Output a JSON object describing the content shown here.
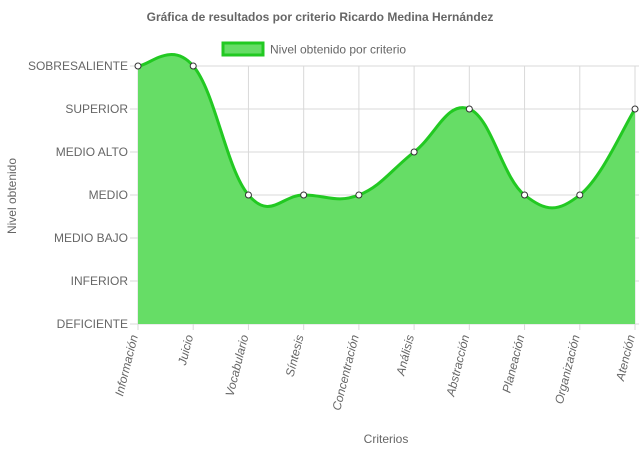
{
  "chart_data": {
    "type": "area",
    "title": "Gráfica de resultados por criterio Ricardo Medina Hernández",
    "xlabel": "Criterios",
    "ylabel": "Nivel obtenido",
    "legend": {
      "position": "top",
      "label": "Nivel obtenido por criterio"
    },
    "levels": [
      "DEFICIENTE",
      "INFERIOR",
      "MEDIO BAJO",
      "MEDIO",
      "MEDIO ALTO",
      "SUPERIOR",
      "SOBRESALIENTE"
    ],
    "categories": [
      "Información",
      "Juicio",
      "Vocabulario",
      "Síntesis",
      "Concentración",
      "Análisis",
      "Abstracción",
      "Planeación",
      "Organización",
      "Atención"
    ],
    "series": [
      {
        "name": "Nivel obtenido por criterio",
        "values": [
          "SOBRESALIENTE",
          "SOBRESALIENTE",
          "MEDIO",
          "MEDIO",
          "MEDIO",
          "MEDIO ALTO",
          "SUPERIOR",
          "MEDIO",
          "MEDIO",
          "SUPERIOR"
        ]
      }
    ],
    "grid": true,
    "colors": {
      "fill": "#66dd66",
      "stroke": "#22c922",
      "grid": "#d9d9d9",
      "text": "#666666"
    }
  }
}
